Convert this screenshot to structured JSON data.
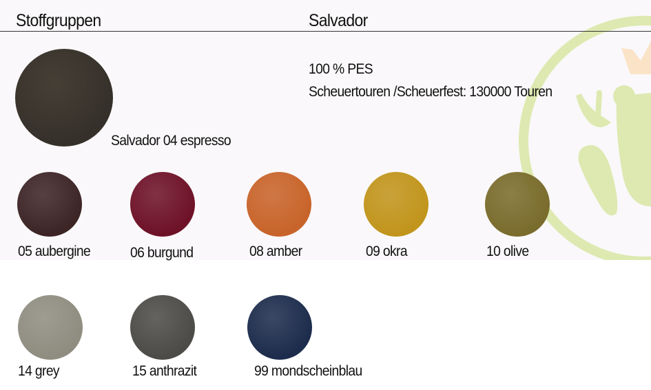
{
  "header": {
    "left_title": "Stoffgruppen",
    "right_title": "Salvador"
  },
  "info": {
    "material": "100 % PES",
    "abrasion": "Scheuertouren /Scheuerfest: 130000 Touren"
  },
  "featured": {
    "label": "Salvador 04 espresso",
    "color": "#35302a"
  },
  "swatches": [
    {
      "label": "05 aubergine",
      "color": "#3d2526"
    },
    {
      "label": "06 burgund",
      "color": "#6e1228"
    },
    {
      "label": "08 amber",
      "color": "#c8642a"
    },
    {
      "label": "09 okra",
      "color": "#c1951c"
    },
    {
      "label": "10 olive",
      "color": "#7a6c2c"
    },
    {
      "label": "14 grey",
      "color": "#8f8d80"
    },
    {
      "label": "15 anthrazit",
      "color": "#4d4b47"
    },
    {
      "label": "99 mondscheinblau",
      "color": "#1d2c4c"
    }
  ],
  "colors": {
    "logo_green": "#dde9b0",
    "logo_crown": "#fbe3c8"
  },
  "logo": {
    "icon": "frog-king-icon"
  }
}
